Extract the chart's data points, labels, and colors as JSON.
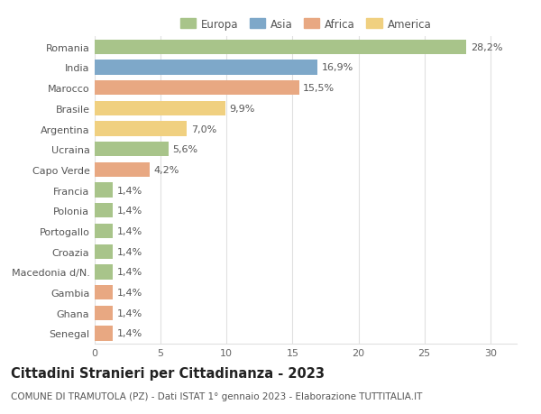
{
  "countries": [
    "Romania",
    "India",
    "Marocco",
    "Brasile",
    "Argentina",
    "Ucraina",
    "Capo Verde",
    "Francia",
    "Polonia",
    "Portogallo",
    "Croazia",
    "Macedonia d/N.",
    "Gambia",
    "Ghana",
    "Senegal"
  ],
  "values": [
    28.2,
    16.9,
    15.5,
    9.9,
    7.0,
    5.6,
    4.2,
    1.4,
    1.4,
    1.4,
    1.4,
    1.4,
    1.4,
    1.4,
    1.4
  ],
  "labels": [
    "28,2%",
    "16,9%",
    "15,5%",
    "9,9%",
    "7,0%",
    "5,6%",
    "4,2%",
    "1,4%",
    "1,4%",
    "1,4%",
    "1,4%",
    "1,4%",
    "1,4%",
    "1,4%",
    "1,4%"
  ],
  "continents": [
    "Europa",
    "Asia",
    "Africa",
    "America",
    "America",
    "Europa",
    "Africa",
    "Europa",
    "Europa",
    "Europa",
    "Europa",
    "Europa",
    "Africa",
    "Africa",
    "Africa"
  ],
  "continent_colors": {
    "Europa": "#a8c48a",
    "Asia": "#7ea8c9",
    "Africa": "#e8a882",
    "America": "#f0d080"
  },
  "legend_order": [
    "Europa",
    "Asia",
    "Africa",
    "America"
  ],
  "legend_colors": [
    "#a8c48a",
    "#7ea8c9",
    "#e8a882",
    "#f0d080"
  ],
  "title": "Cittadini Stranieri per Cittadinanza - 2023",
  "subtitle": "COMUNE DI TRAMUTOLA (PZ) - Dati ISTAT 1° gennaio 2023 - Elaborazione TUTTITALIA.IT",
  "xlim": [
    0,
    32
  ],
  "xticks": [
    0,
    5,
    10,
    15,
    20,
    25,
    30
  ],
  "background_color": "#ffffff",
  "grid_color": "#e0e0e0",
  "bar_height": 0.72,
  "title_fontsize": 10.5,
  "subtitle_fontsize": 7.5,
  "label_fontsize": 8,
  "tick_fontsize": 8,
  "legend_fontsize": 8.5
}
